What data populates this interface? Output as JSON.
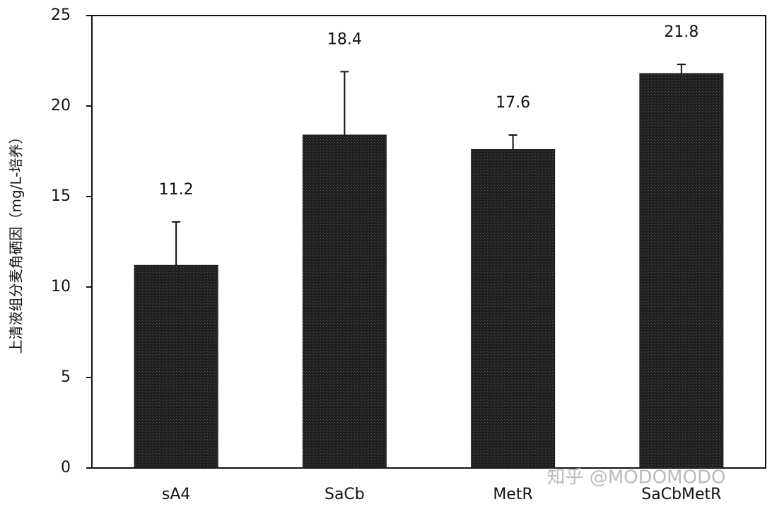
{
  "chart_data": {
    "type": "bar",
    "y_label": "上清液组分麦角硒因（mg/L-培养）",
    "categories": [
      "sA4",
      "SaCb",
      "MetR",
      "SaCbMetR"
    ],
    "values": [
      11.2,
      18.4,
      17.6,
      21.8
    ],
    "errors": [
      2.4,
      3.5,
      0.8,
      0.5
    ],
    "color": "#1e1e1e",
    "ylim": [
      0,
      25
    ],
    "yticks": [
      0,
      5,
      10,
      15,
      20,
      25
    ],
    "grid": false,
    "watermark": "知乎 @MODOMODO"
  }
}
